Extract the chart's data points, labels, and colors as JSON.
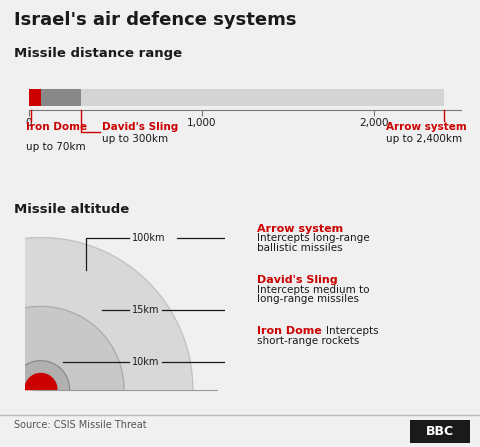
{
  "title": "Israel's air defence systems",
  "bg_color": "#f0f0f0",
  "red_color": "#cc0000",
  "gray_color": "#888888",
  "light_gray": "#d4d4d4",
  "dark_text": "#1a1a1a",
  "section1_title": "Missile distance range",
  "section2_title": "Missile altitude",
  "source_text": "Source: CSIS Missile Threat",
  "bbc_text": "BBC",
  "dome_colors": [
    "#d0d0d0",
    "#c0c0c0",
    "#a8a8a8"
  ],
  "dome_edge_colors": [
    "#b8b8b8",
    "#a8a8a8",
    "#909090"
  ]
}
